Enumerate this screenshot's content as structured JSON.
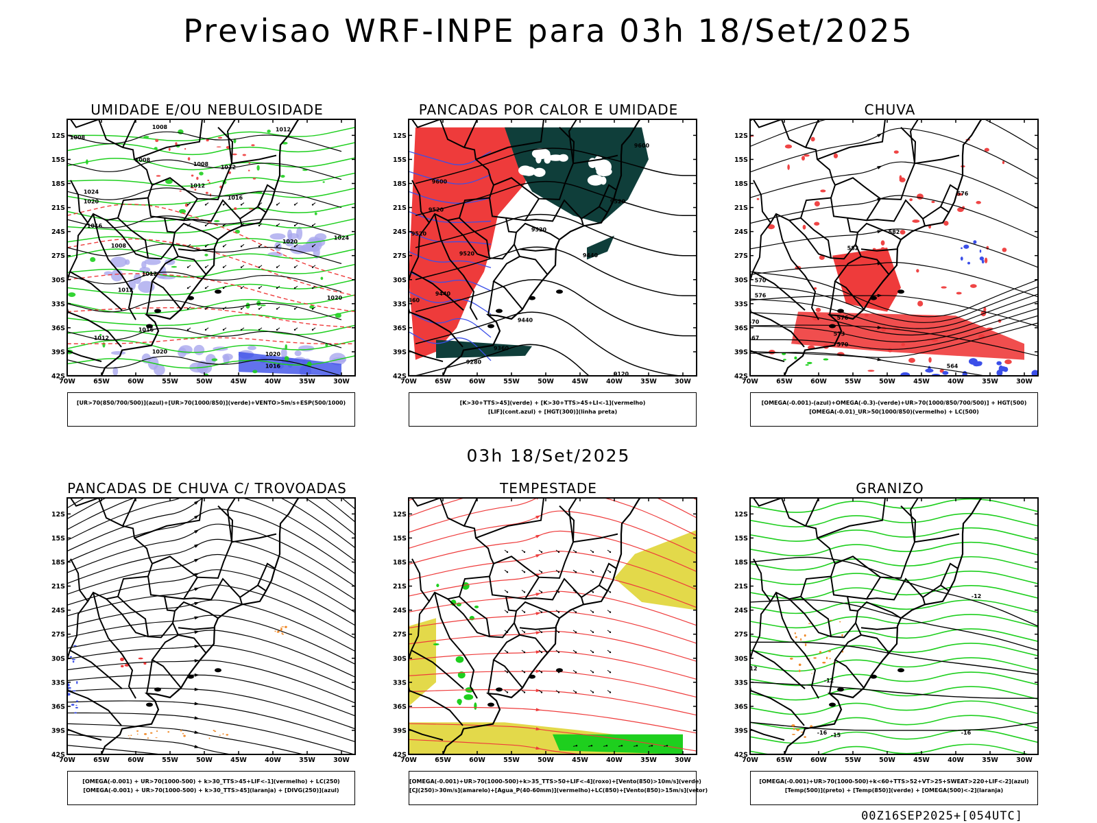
{
  "title": "Previsao WRF-INPE  para 03h 18/Set/2025",
  "subtitle": "03h 18/Set/2025",
  "footer": "00Z16SEP2025+[054UTC]",
  "axes": {
    "lat_ticks": [
      "12S",
      "15S",
      "18S",
      "21S",
      "24S",
      "27S",
      "30S",
      "33S",
      "36S",
      "39S",
      "42S"
    ],
    "lon_ticks": [
      "70W",
      "65W",
      "60W",
      "55W",
      "50W",
      "45W",
      "40W",
      "35W",
      "30W"
    ],
    "lat_range": [
      -42,
      -10
    ],
    "lon_range": [
      -70,
      -28
    ]
  },
  "colors": {
    "blue": "#3b4fe8",
    "green": "#1ecf1e",
    "red": "#ee3b3b",
    "orange": "#ef8a2a",
    "lavender": "#a9a8ee",
    "yellow": "#e3d94a",
    "darkteal": "#0f3e3a"
  },
  "panels": [
    {
      "id": "umidade",
      "title": "UMIDADE E/OU NEBULOSIDADE",
      "legend": [
        "[UR>70(850/700/500)](azul)+[UR>70(1000/850)](verde)+VENTO>5m/s+ESP(500/1000)"
      ],
      "contour_labels": [
        {
          "text": "1008",
          "lon": -68.5,
          "lat": -12.5
        },
        {
          "text": "1008",
          "lon": -56.5,
          "lat": -11.2
        },
        {
          "text": "1008",
          "lon": -59,
          "lat": -15.3
        },
        {
          "text": "1012",
          "lon": -38.5,
          "lat": -11.5
        },
        {
          "text": "1008",
          "lon": -50.5,
          "lat": -15.8
        },
        {
          "text": "1012",
          "lon": -46.5,
          "lat": -16.2
        },
        {
          "text": "1012",
          "lon": -51,
          "lat": -18.5
        },
        {
          "text": "1016",
          "lon": -45.5,
          "lat": -20
        },
        {
          "text": "1024",
          "lon": -66.5,
          "lat": -19.3
        },
        {
          "text": "1020",
          "lon": -66.5,
          "lat": -20.5
        },
        {
          "text": "1016",
          "lon": -66,
          "lat": -23.5
        },
        {
          "text": "1008",
          "lon": -62.5,
          "lat": -26
        },
        {
          "text": "1020",
          "lon": -37.5,
          "lat": -25.5
        },
        {
          "text": "1024",
          "lon": -30,
          "lat": -25
        },
        {
          "text": "1012",
          "lon": -58,
          "lat": -29.5
        },
        {
          "text": "1012",
          "lon": -61.5,
          "lat": -31.5
        },
        {
          "text": "1016",
          "lon": -58.5,
          "lat": -36.5
        },
        {
          "text": "1012",
          "lon": -65,
          "lat": -37.5
        },
        {
          "text": "1020",
          "lon": -56.5,
          "lat": -39.2
        },
        {
          "text": "1020",
          "lon": -40,
          "lat": -39.5
        },
        {
          "text": "1016",
          "lon": -40,
          "lat": -41
        },
        {
          "text": "1020",
          "lon": -31,
          "lat": -32.5
        }
      ]
    },
    {
      "id": "pancadas-calor",
      "title": "PANCADAS POR CALOR E UMIDADE",
      "legend": [
        "[K>30+TTS>45](verde) + [K>30+TTS>45+LI<-1](vermelho)",
        "[LIF](cont.azul) + [HGT(300)](linha preta)"
      ],
      "contour_labels": [
        {
          "text": "9600",
          "lon": -36,
          "lat": -13.5
        },
        {
          "text": "9600",
          "lon": -65.5,
          "lat": -18
        },
        {
          "text": "9520",
          "lon": -66,
          "lat": -21.5
        },
        {
          "text": "9520",
          "lon": -39.5,
          "lat": -20.5
        },
        {
          "text": "9520",
          "lon": -68.5,
          "lat": -24.5
        },
        {
          "text": "9520",
          "lon": -61.5,
          "lat": -27
        },
        {
          "text": "9520",
          "lon": -51,
          "lat": -24
        },
        {
          "text": "9440",
          "lon": -43.5,
          "lat": -27.2
        },
        {
          "text": "9440",
          "lon": -65,
          "lat": -32
        },
        {
          "text": "9360",
          "lon": -69.5,
          "lat": -32.8
        },
        {
          "text": "9440",
          "lon": -53,
          "lat": -35.3
        },
        {
          "text": "9360",
          "lon": -56.5,
          "lat": -38.8
        },
        {
          "text": "9280",
          "lon": -60.5,
          "lat": -40.5
        },
        {
          "text": "9120",
          "lon": -39,
          "lat": -42
        }
      ]
    },
    {
      "id": "chuva",
      "title": "CHUVA",
      "legend": [
        "[OMEGA(-0.001)-(azul)+OMEGA(-0.3)-(verde)+UR>70(1000/850/700/500)] + HGT(500)",
        "[OMEGA(-0.01)_UR>50(1000/850)(vermelho) + LC(500)"
      ],
      "contour_labels": [
        {
          "text": "576",
          "lon": -39,
          "lat": -19.5
        },
        {
          "text": "582",
          "lon": -49,
          "lat": -24.3
        },
        {
          "text": "582",
          "lon": -55,
          "lat": -26.3
        },
        {
          "text": "576",
          "lon": -56.5,
          "lat": -35
        },
        {
          "text": "573",
          "lon": -57,
          "lat": -37
        },
        {
          "text": "570",
          "lon": -56.5,
          "lat": -38.3
        },
        {
          "text": "570",
          "lon": -68.5,
          "lat": -30.3
        },
        {
          "text": "576",
          "lon": -68.5,
          "lat": -32.2
        },
        {
          "text": "570",
          "lon": -69.5,
          "lat": -35.5
        },
        {
          "text": "567",
          "lon": -69.5,
          "lat": -37.5
        },
        {
          "text": "564",
          "lon": -40.5,
          "lat": -41
        }
      ]
    },
    {
      "id": "pancadas-trovoadas",
      "title": "PANCADAS DE CHUVA C/ TROVOADAS",
      "legend": [
        "[OMEGA(-0.001) + UR>70(1000-500) + k>30_TTS>45+LIF<-1](vermelho) + LC(250)",
        "[OMEGA(-0.001) + UR>70(1000-500) + k>30_TTS>45](laranja) + [DIVG(250)](azul)"
      ],
      "contour_labels": []
    },
    {
      "id": "tempestade",
      "title": "TEMPESTADE",
      "legend": [
        "[OMEGA(-0.001)+UR>70(1000-500)+k>35_TTS>50+LIF<-4](roxo)+[Vento(850)>10m/s](verde)",
        "[CJ(250)>30m/s](amarelo)+[Agua_P(40-60mm)](vermelho)+LC(850)+[Vento(850)>15m/s](vetor)"
      ],
      "contour_labels": []
    },
    {
      "id": "granizo",
      "title": "GRANIZO",
      "legend": [
        "[OMEGA(-0.001)+UR>70(1000-500)+k<60+TTS>52+VT>25+SWEAT>220+LIF<-2](azul)",
        "[Temp(500)](preto) + [Temp(850)](verde) + [OMEGA(500)<-2](laranja)"
      ],
      "contour_labels": [
        {
          "text": "-12",
          "lon": -37,
          "lat": -22.5
        },
        {
          "text": "-16",
          "lon": -38.5,
          "lat": -39.5
        },
        {
          "text": "-12",
          "lon": -58.5,
          "lat": -33
        },
        {
          "text": "-16",
          "lon": -59.5,
          "lat": -39.5
        },
        {
          "text": "-15",
          "lon": -57.5,
          "lat": -39.8
        },
        {
          "text": "12",
          "lon": -69.5,
          "lat": -31.5
        }
      ]
    }
  ]
}
